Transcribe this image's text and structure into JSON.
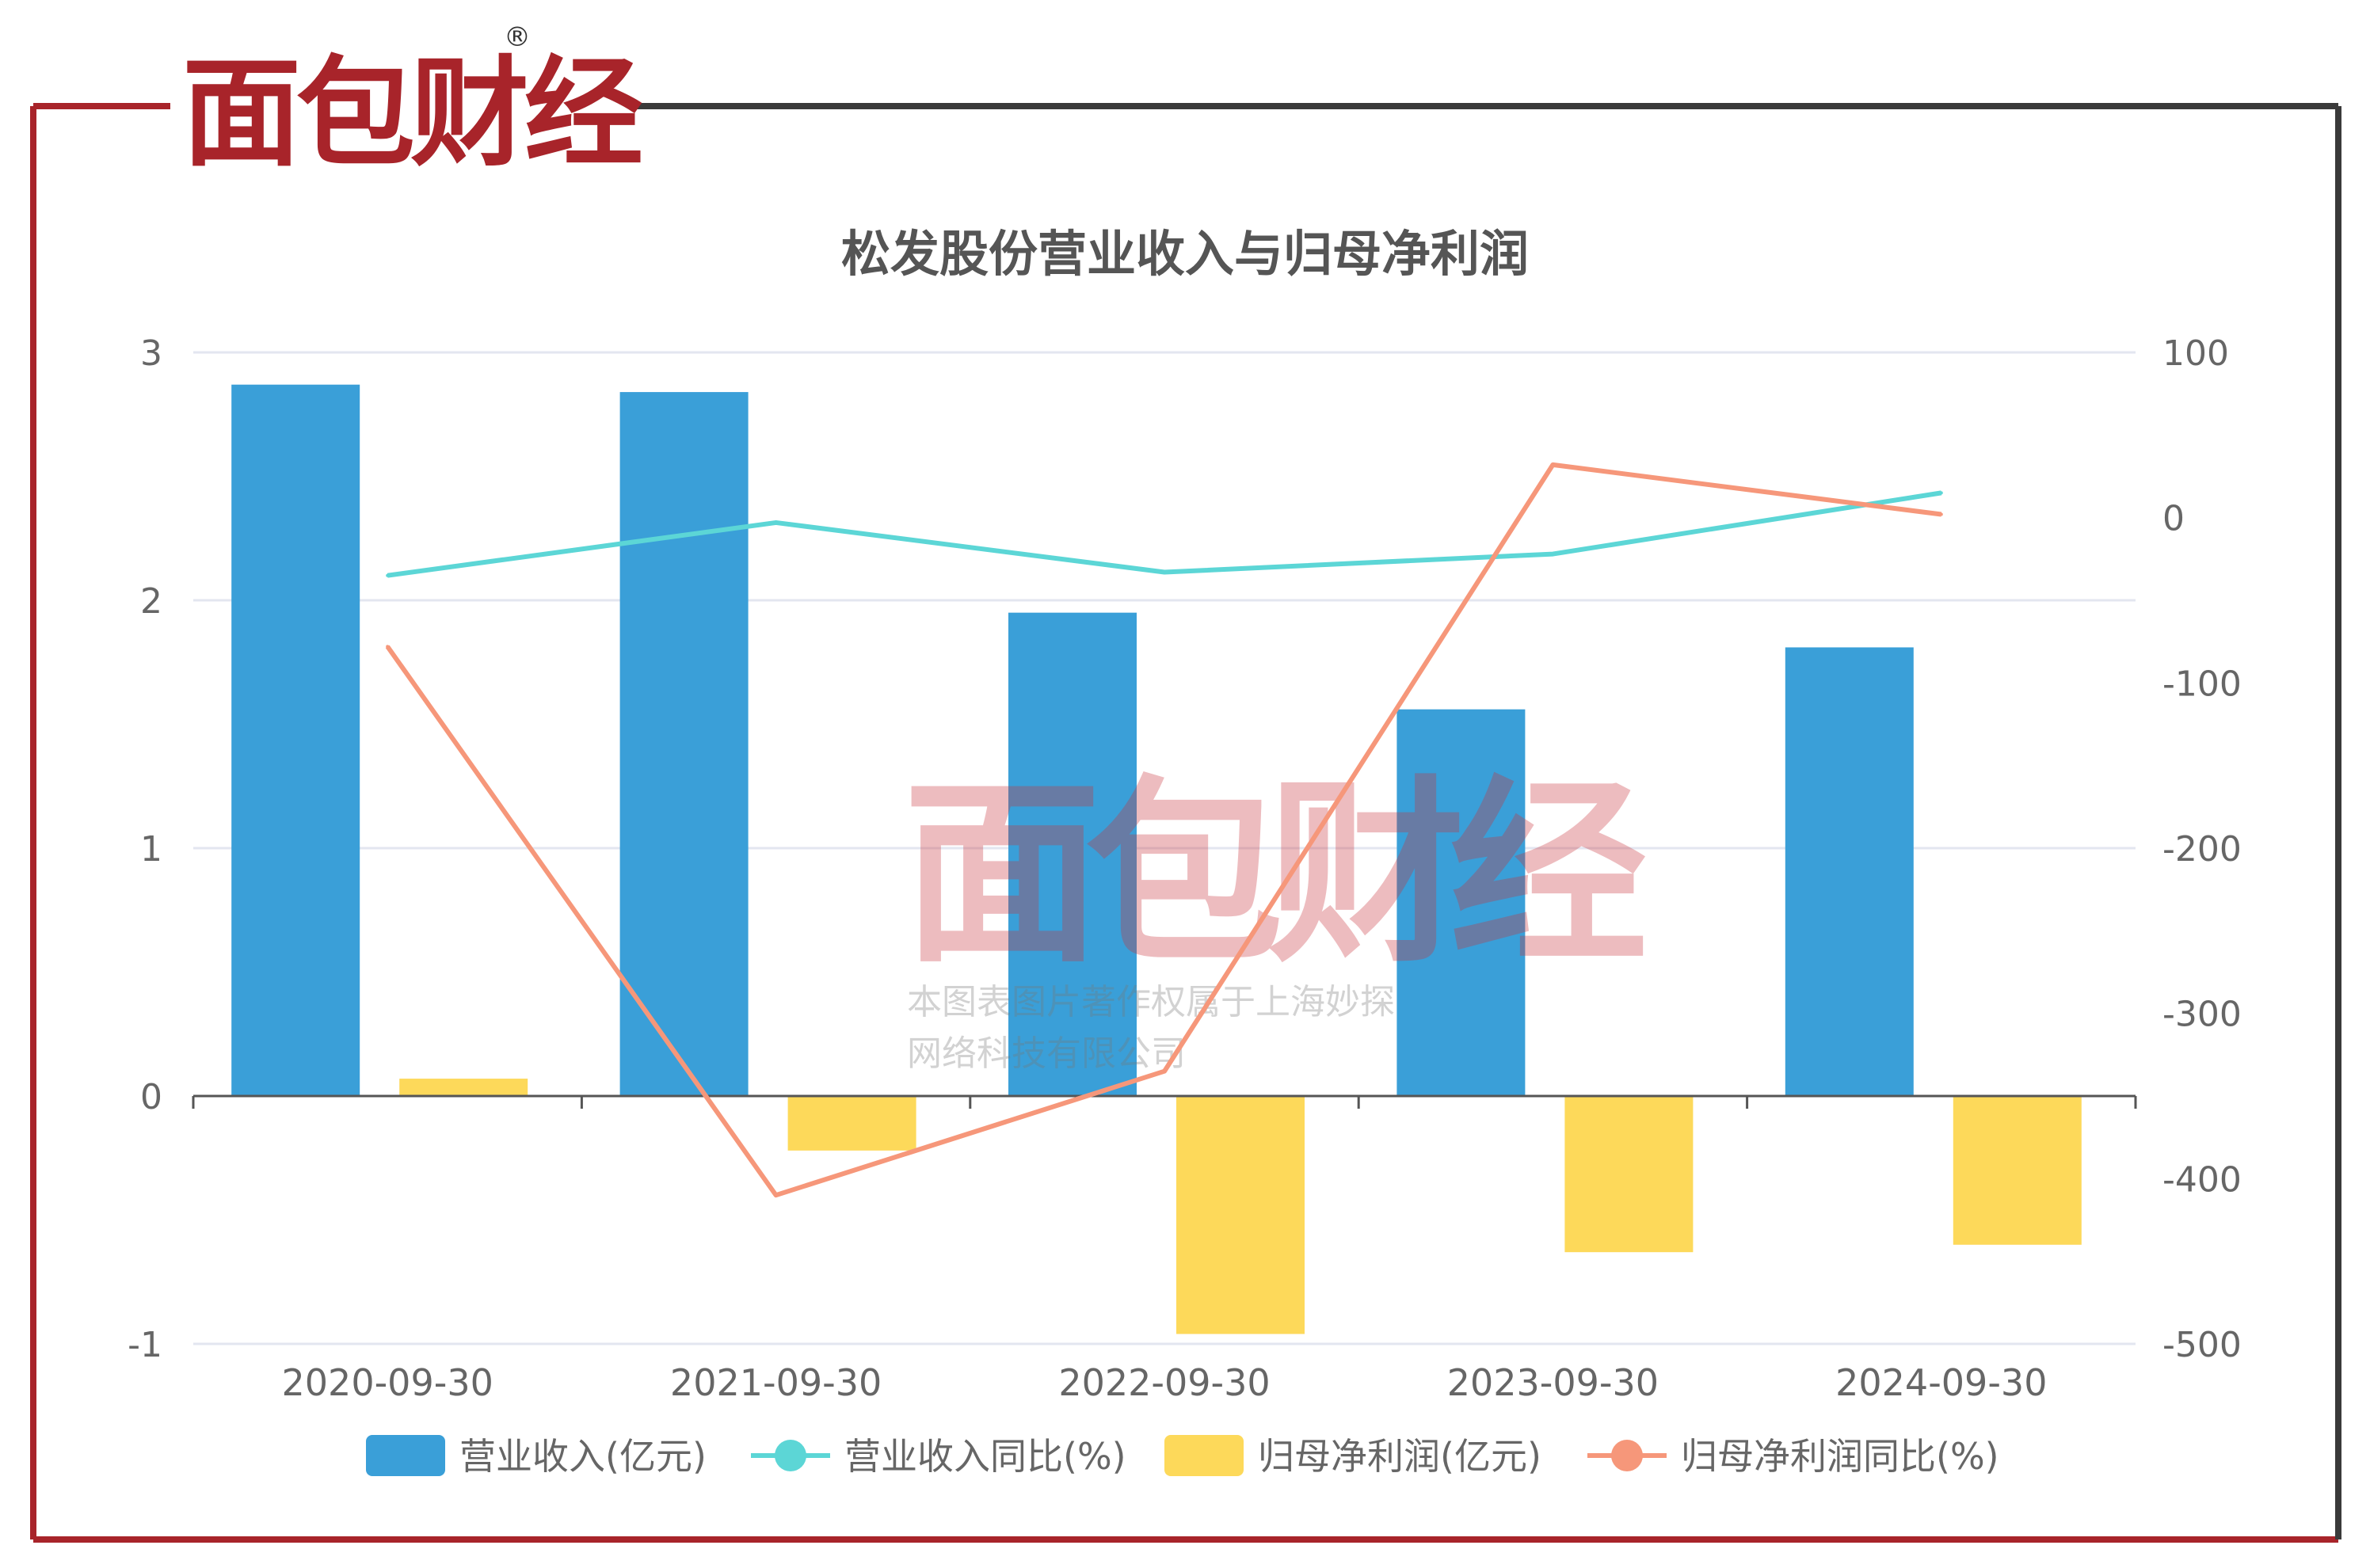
{
  "brand": {
    "logo_text": "面包财经",
    "registered_mark": "®"
  },
  "watermark": {
    "logo_text": "面包财经",
    "line1": "本图表图片著作权属于上海妙探",
    "line2": "网络科技有限公司"
  },
  "colors": {
    "brand_red": "#a8242a",
    "frame_dark": "#3a3a3a",
    "bar_revenue": "#3a9fd8",
    "bar_profit": "#fdd95a",
    "line_revenue_yoy": "#5cd6d6",
    "line_profit_yoy": "#f6977a"
  },
  "chart_data": {
    "type": "bar",
    "title": "松发股份营业收入与归母净利润",
    "categories": [
      "2020-09-30",
      "2021-09-30",
      "2022-09-30",
      "2023-09-30",
      "2024-09-30"
    ],
    "y_left": {
      "min": -1,
      "max": 3,
      "ticks": [
        "-1",
        "0",
        "1",
        "2",
        "3"
      ]
    },
    "y_right": {
      "min": -500,
      "max": 100,
      "ticks": [
        "-500",
        "-400",
        "-300",
        "-200",
        "-100",
        "0",
        "100"
      ]
    },
    "series": [
      {
        "name": "营业收入(亿元)",
        "kind": "bar",
        "axis": "left",
        "values": [
          2.87,
          2.84,
          1.95,
          1.56,
          1.81
        ]
      },
      {
        "name": "营业收入同比(%)",
        "kind": "line",
        "axis": "right",
        "values": [
          -35,
          -3,
          -33,
          -22,
          15
        ]
      },
      {
        "name": "归母净利润(亿元)",
        "kind": "bar",
        "axis": "left",
        "values": [
          0.07,
          -0.22,
          -0.96,
          -0.63,
          -0.6
        ]
      },
      {
        "name": "归母净利润同比(%)",
        "kind": "line",
        "axis": "right",
        "values": [
          -78,
          -410,
          -335,
          32,
          2
        ]
      }
    ],
    "grid": "horizontal",
    "legend_position": "bottom"
  }
}
